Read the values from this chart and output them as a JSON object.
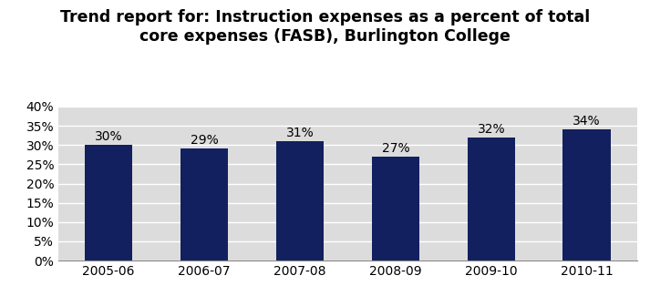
{
  "categories": [
    "2005-06",
    "2006-07",
    "2007-08",
    "2008-09",
    "2009-10",
    "2010-11"
  ],
  "values": [
    0.3,
    0.29,
    0.31,
    0.27,
    0.32,
    0.34
  ],
  "labels": [
    "30%",
    "29%",
    "31%",
    "27%",
    "32%",
    "34%"
  ],
  "bar_color": "#12205F",
  "title_line1": "Trend report for: Instruction expenses as a percent of total",
  "title_line2": "core expenses (FASB), Burlington College",
  "ylim": [
    0.0,
    0.4
  ],
  "yticks": [
    0.0,
    0.05,
    0.1,
    0.15,
    0.2,
    0.25,
    0.3,
    0.35,
    0.4
  ],
  "ytick_labels": [
    "0%",
    "5%",
    "10%",
    "15%",
    "20%",
    "25%",
    "30%",
    "35%",
    "40%"
  ],
  "plot_bg_color": "#DCDCDC",
  "fig_bg_color": "#FFFFFF",
  "label_fontsize": 10,
  "title_fontsize": 12.5,
  "tick_fontsize": 10,
  "bar_width": 0.5
}
